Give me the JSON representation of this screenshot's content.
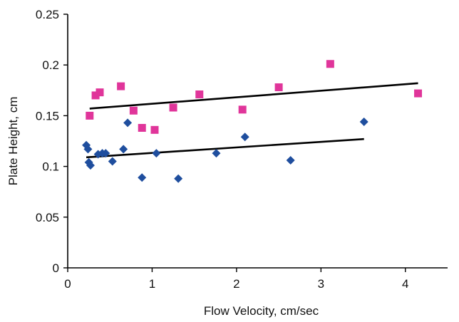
{
  "chart_data": {
    "type": "scatter",
    "title": "",
    "xlabel": "Flow Velocity, cm/sec",
    "ylabel": "Plate Height, cm",
    "xlim": [
      0,
      4.5
    ],
    "ylim": [
      0,
      0.25
    ],
    "x_ticks": [
      0,
      1,
      2,
      3,
      4
    ],
    "x_tick_labels": [
      "0",
      "1",
      "2",
      "3",
      "4"
    ],
    "y_ticks": [
      0,
      0.05,
      0.1,
      0.15,
      0.2,
      0.25
    ],
    "y_tick_labels": [
      "0",
      "0.05",
      "0.1",
      "0.15",
      "0.2",
      "0.25"
    ],
    "grid": false,
    "legend": "none",
    "series": [
      {
        "marker": "square",
        "color": "#e0359a",
        "points": [
          [
            0.26,
            0.15
          ],
          [
            0.33,
            0.17
          ],
          [
            0.38,
            0.173
          ],
          [
            0.63,
            0.179
          ],
          [
            0.78,
            0.155
          ],
          [
            0.88,
            0.138
          ],
          [
            1.03,
            0.136
          ],
          [
            1.25,
            0.158
          ],
          [
            1.56,
            0.171
          ],
          [
            2.07,
            0.156
          ],
          [
            2.5,
            0.178
          ],
          [
            3.11,
            0.201
          ],
          [
            4.15,
            0.172
          ]
        ],
        "trendline": {
          "x": [
            0.26,
            4.15
          ],
          "y": [
            0.157,
            0.182
          ]
        }
      },
      {
        "marker": "diamond",
        "color": "#1f4e9e",
        "points": [
          [
            0.22,
            0.121
          ],
          [
            0.24,
            0.117
          ],
          [
            0.25,
            0.104
          ],
          [
            0.27,
            0.101
          ],
          [
            0.36,
            0.112
          ],
          [
            0.41,
            0.113
          ],
          [
            0.45,
            0.113
          ],
          [
            0.53,
            0.105
          ],
          [
            0.66,
            0.117
          ],
          [
            0.71,
            0.143
          ],
          [
            0.88,
            0.089
          ],
          [
            1.05,
            0.113
          ],
          [
            1.31,
            0.088
          ],
          [
            1.76,
            0.113
          ],
          [
            2.1,
            0.129
          ],
          [
            2.64,
            0.106
          ],
          [
            3.51,
            0.144
          ]
        ],
        "trendline": {
          "x": [
            0.22,
            3.51
          ],
          "y": [
            0.109,
            0.127
          ]
        }
      }
    ]
  }
}
